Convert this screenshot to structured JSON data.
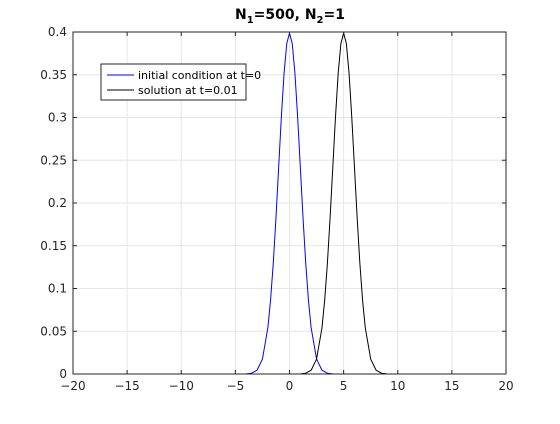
{
  "chart_data": {
    "type": "line",
    "title": {
      "parts": [
        {
          "text": "N",
          "sub": false
        },
        {
          "text": "1",
          "sub": true
        },
        {
          "text": "=500, N",
          "sub": false
        },
        {
          "text": "2",
          "sub": true
        },
        {
          "text": "=1",
          "sub": false
        }
      ]
    },
    "xlabel": "",
    "ylabel": "",
    "xlim": [
      -20,
      20
    ],
    "ylim": [
      0,
      0.4
    ],
    "xticks": [
      -20,
      -15,
      -10,
      -5,
      0,
      5,
      10,
      15,
      20
    ],
    "yticks": [
      0,
      0.05,
      0.1,
      0.15,
      0.2,
      0.25,
      0.3,
      0.35,
      0.4
    ],
    "xtick_labels": [
      "−20",
      "−15",
      "−10",
      "−5",
      "0",
      "5",
      "10",
      "15",
      "20"
    ],
    "ytick_labels": [
      "0",
      "0.05",
      "0.1",
      "0.15",
      "0.2",
      "0.25",
      "0.3",
      "0.35",
      "0.4"
    ],
    "grid": true,
    "legend": {
      "placement": "top-left"
    },
    "series": [
      {
        "name": "initial condition at t=0",
        "color": "#0000ff",
        "x": [
          -4,
          -3.5,
          -3,
          -2.5,
          -2,
          -1.75,
          -1.5,
          -1.25,
          -1,
          -0.75,
          -0.5,
          -0.25,
          0,
          0.25,
          0.5,
          0.75,
          1,
          1.25,
          1.5,
          1.75,
          2,
          2.5,
          3,
          3.5,
          4
        ],
        "y": [
          0.0001,
          0.0009,
          0.0044,
          0.0175,
          0.054,
          0.0863,
          0.1295,
          0.1826,
          0.242,
          0.3011,
          0.3521,
          0.3867,
          0.3989,
          0.3867,
          0.3521,
          0.3011,
          0.242,
          0.1826,
          0.1295,
          0.0863,
          0.054,
          0.0175,
          0.0044,
          0.0009,
          0.0001
        ]
      },
      {
        "name": "solution at t=0.01",
        "color": "#000000",
        "x": [
          1,
          1.5,
          2,
          2.5,
          3,
          3.25,
          3.5,
          3.75,
          4,
          4.25,
          4.5,
          4.75,
          5,
          5.25,
          5.5,
          5.75,
          6,
          6.25,
          6.5,
          6.75,
          7,
          7.5,
          8,
          8.5,
          9
        ],
        "y": [
          0.0001,
          0.0009,
          0.0044,
          0.0175,
          0.054,
          0.0863,
          0.1295,
          0.1826,
          0.242,
          0.3011,
          0.3521,
          0.3867,
          0.3989,
          0.3867,
          0.3521,
          0.3011,
          0.242,
          0.1826,
          0.1295,
          0.0863,
          0.054,
          0.0175,
          0.0044,
          0.0009,
          0.0001
        ]
      }
    ]
  },
  "colors": {
    "grid": "#e6e6e6",
    "axis": "#262626",
    "legend_border": "#262626"
  }
}
